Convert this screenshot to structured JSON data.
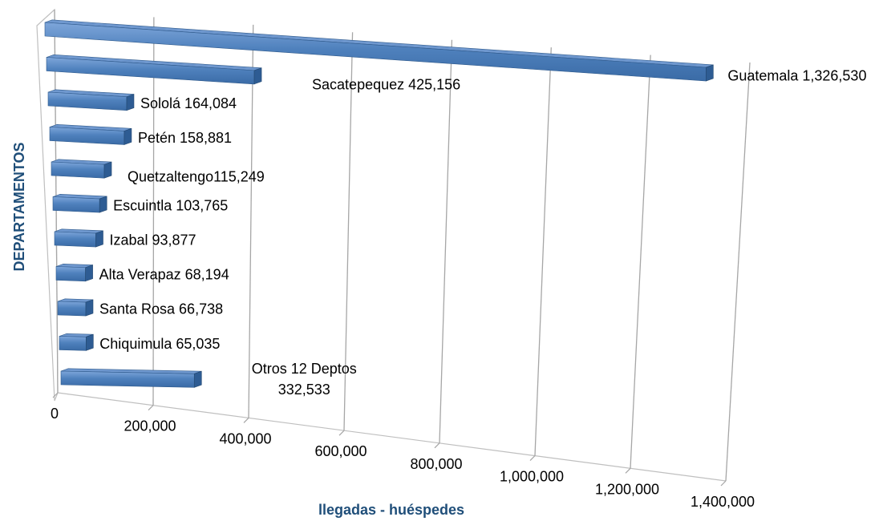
{
  "chart_data": {
    "type": "bar",
    "orientation": "horizontal",
    "style": "3d-perspective",
    "title": "",
    "xlabel": "llegadas - huéspedes",
    "ylabel": "DEPARTAMENTOS",
    "xlim": [
      0,
      1400000
    ],
    "x_ticks": [
      "0",
      "200,000",
      "400,000",
      "600,000",
      "800,000",
      "1,000,000",
      "1,200,000",
      "1,400,000"
    ],
    "grid": true,
    "legend": "none",
    "bar_color": "#4F81BD",
    "series": [
      {
        "values": [
          1326530,
          425156,
          164084,
          158881,
          115249,
          103765,
          93877,
          68194,
          66738,
          65035,
          332533
        ],
        "labels": [
          "Guatemala 1,326,530",
          "Sacatepequez 425,156",
          "Sololá 164,084",
          "Petén 158,881",
          "Quetzaltengo115,249",
          "Escuintla 103,765",
          "Izabal 93,877",
          "Alta Verapaz 68,194",
          "Santa Rosa 66,738",
          "Chiquimula 65,035",
          [
            "Otros 12 Deptos",
            "332,533"
          ]
        ]
      }
    ]
  }
}
